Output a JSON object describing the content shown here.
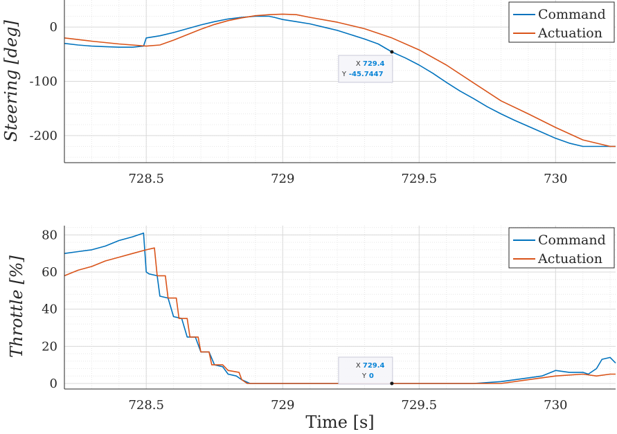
{
  "chart_data": [
    {
      "type": "line",
      "ylabel": "Steering [deg]",
      "xlabel": "",
      "xlim": [
        728.2,
        730.22
      ],
      "ylim": [
        -250,
        50
      ],
      "xticks": [
        728.5,
        729,
        729.5,
        730
      ],
      "xtick_labels": [
        "728.5",
        "729",
        "729.5",
        "730"
      ],
      "yticks": [
        0,
        -100,
        -200
      ],
      "ytick_labels": [
        "0",
        "-100",
        "-200"
      ],
      "grid": true,
      "legend": "top-right",
      "series": [
        {
          "name": "Command",
          "color": "#0072bd",
          "x": [
            728.2,
            728.25,
            728.3,
            728.35,
            728.4,
            728.45,
            728.49,
            728.5,
            728.55,
            728.6,
            728.65,
            728.7,
            728.75,
            728.8,
            728.85,
            728.9,
            728.95,
            728.97,
            729.0,
            729.05,
            729.1,
            729.15,
            729.2,
            729.25,
            729.3,
            729.35,
            729.4,
            729.45,
            729.5,
            729.55,
            729.6,
            729.65,
            729.7,
            729.75,
            729.8,
            729.85,
            729.9,
            729.95,
            730.0,
            730.05,
            730.1,
            730.15,
            730.2,
            730.22
          ],
          "y": [
            -30,
            -33,
            -35,
            -36,
            -37,
            -37,
            -35,
            -20,
            -16,
            -10,
            -3,
            4,
            10,
            15,
            18,
            20,
            20,
            18,
            14,
            10,
            6,
            0,
            -6,
            -14,
            -22,
            -31,
            -45.7447,
            -57,
            -70,
            -85,
            -102,
            -118,
            -132,
            -147,
            -160,
            -172,
            -183,
            -194,
            -205,
            -214,
            -220,
            -220,
            -220,
            -220
          ]
        },
        {
          "name": "Actuation",
          "color": "#d95319",
          "x": [
            728.2,
            728.3,
            728.4,
            728.5,
            728.55,
            728.6,
            728.65,
            728.7,
            728.75,
            728.8,
            728.85,
            728.9,
            728.95,
            729.0,
            729.05,
            729.1,
            729.2,
            729.3,
            729.4,
            729.5,
            729.6,
            729.7,
            729.8,
            729.9,
            730.0,
            730.1,
            730.2,
            730.22
          ],
          "y": [
            -20,
            -26,
            -31,
            -35,
            -33,
            -24,
            -14,
            -4,
            5,
            12,
            17,
            21,
            23,
            24,
            23,
            18,
            9,
            -3,
            -20,
            -42,
            -70,
            -103,
            -136,
            -160,
            -185,
            -208,
            -220,
            -220
          ]
        }
      ],
      "annotation": {
        "x_label": "X",
        "x_value": "729.4",
        "y_label": "Y",
        "y_value": "-45.7447",
        "at": [
          729.4,
          -45.7447
        ]
      }
    },
    {
      "type": "line",
      "ylabel": "Throttle [%]",
      "xlabel": "Time [s]",
      "xlim": [
        728.2,
        730.22
      ],
      "ylim": [
        -3,
        85
      ],
      "xticks": [
        728.5,
        729,
        729.5,
        730
      ],
      "xtick_labels": [
        "728.5",
        "729",
        "729.5",
        "730"
      ],
      "yticks": [
        0,
        20,
        40,
        60,
        80
      ],
      "ytick_labels": [
        "0",
        "20",
        "40",
        "60",
        "80"
      ],
      "grid": true,
      "legend": "top-right",
      "series": [
        {
          "name": "Command",
          "color": "#0072bd",
          "x": [
            728.2,
            728.25,
            728.3,
            728.35,
            728.4,
            728.45,
            728.49,
            728.5,
            728.51,
            728.54,
            728.55,
            728.58,
            728.6,
            728.63,
            728.65,
            728.68,
            728.7,
            728.73,
            728.75,
            728.78,
            728.8,
            728.83,
            728.85,
            728.88,
            729.0,
            729.4,
            729.7,
            729.8,
            729.9,
            729.95,
            730.0,
            730.05,
            730.1,
            730.12,
            730.15,
            730.17,
            730.2,
            730.22
          ],
          "y": [
            70,
            71,
            72,
            74,
            77,
            79,
            81,
            60,
            59,
            58,
            47,
            46,
            36,
            35,
            25,
            25,
            17,
            17,
            10,
            9,
            5,
            4,
            2,
            0,
            0,
            0,
            0,
            1,
            3,
            4,
            7,
            6,
            6,
            5,
            8,
            13,
            14,
            11
          ]
        },
        {
          "name": "Actuation",
          "color": "#d95319",
          "x": [
            728.2,
            728.25,
            728.3,
            728.35,
            728.4,
            728.45,
            728.5,
            728.53,
            728.54,
            728.57,
            728.58,
            728.61,
            728.62,
            728.65,
            728.66,
            728.69,
            728.7,
            728.73,
            728.74,
            728.78,
            728.8,
            728.84,
            728.85,
            728.87,
            729.0,
            729.4,
            729.8,
            729.9,
            730.0,
            730.1,
            730.15,
            730.2,
            730.22
          ],
          "y": [
            58,
            61,
            63,
            66,
            68,
            70,
            72,
            73,
            58,
            58,
            46,
            46,
            35,
            35,
            25,
            25,
            17,
            17,
            10,
            10,
            7,
            6,
            2,
            0,
            0,
            0,
            0,
            2,
            4,
            5,
            4,
            5,
            5
          ]
        }
      ],
      "annotation": {
        "x_label": "X",
        "x_value": "729.4",
        "y_label": "Y",
        "y_value": "0",
        "at": [
          729.4,
          0
        ]
      }
    }
  ]
}
